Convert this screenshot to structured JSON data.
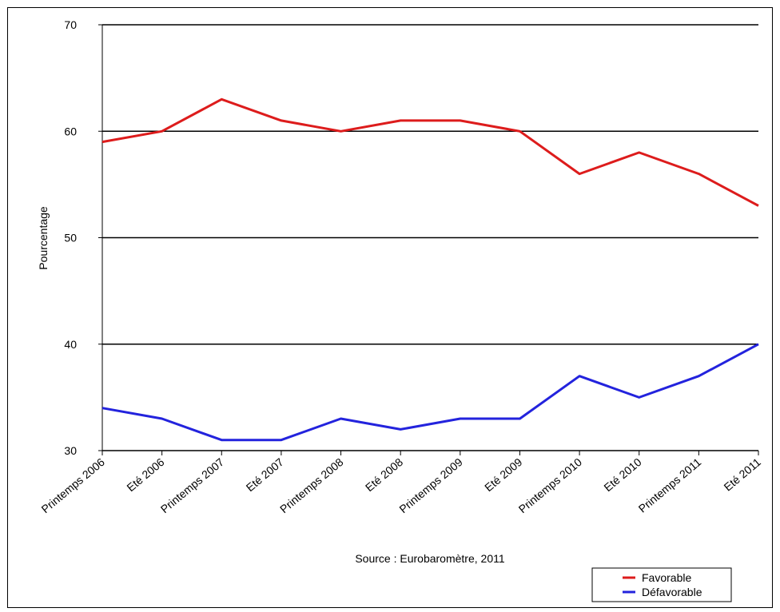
{
  "chart_data": {
    "type": "line",
    "title": "",
    "xlabel": "",
    "ylabel": "Pourcentage",
    "ylim": [
      30,
      70
    ],
    "yticks": [
      30,
      40,
      50,
      60,
      70
    ],
    "grid": "horizontal",
    "legend_position": "bottom-right",
    "source": "Source : Eurobaromètre, 2011",
    "categories": [
      "Printemps 2006",
      "Eté 2006",
      "Printemps 2007",
      "Eté 2007",
      "Printemps 2008",
      "Eté 2008",
      "Printemps 2009",
      "Eté 2009",
      "Printemps 2010",
      "Eté 2010",
      "Printemps 2011",
      "Eté 2011"
    ],
    "series": [
      {
        "name": "Favorable",
        "color": "#dd1c1c",
        "values": [
          59,
          60,
          63,
          61,
          60,
          61,
          61,
          60,
          56,
          58,
          56,
          53
        ]
      },
      {
        "name": "Défavorable",
        "color": "#2323dd",
        "values": [
          34,
          33,
          31,
          31,
          33,
          32,
          33,
          33,
          37,
          35,
          37,
          40
        ]
      }
    ]
  }
}
